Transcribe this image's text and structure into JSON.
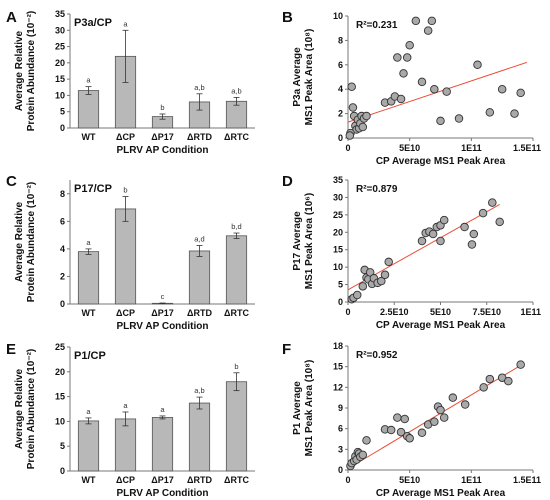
{
  "chart_data": [
    {
      "panel": "A",
      "type": "bar",
      "title": "P3a/CP",
      "xlabel": "PLRV AP Condition",
      "ylabel_lines": [
        "Average Relative",
        "Protein Abundance (10⁻²)"
      ],
      "categories": [
        "WT",
        "ΔCP",
        "ΔP17",
        "ΔRTD",
        "ΔRTC"
      ],
      "values": [
        11.5,
        22,
        3.5,
        8,
        8.2
      ],
      "errors": [
        1.2,
        8,
        0.8,
        2.5,
        1.2
      ],
      "sig_labels": [
        "a",
        "a",
        "b",
        "a,b",
        "a,b"
      ],
      "ylim": [
        0,
        35
      ],
      "yticks": [
        0,
        5,
        10,
        15,
        20,
        25,
        30,
        35
      ],
      "bar_color": "#b8b8b8"
    },
    {
      "panel": "B",
      "type": "scatter",
      "annotation": "R²=0.231",
      "xlabel": "CP Average MS1 Peak Area",
      "ylabel_lines": [
        "P3a Average",
        "MS1 Peak Area (10⁸)"
      ],
      "xlim": [
        0,
        150000000000
      ],
      "ylim": [
        0,
        10
      ],
      "xticks": [
        0,
        50000000000,
        100000000000,
        150000000000
      ],
      "xtick_labels": [
        "0",
        "5E10",
        "1E11",
        "1.5E11"
      ],
      "yticks": [
        0,
        2,
        4,
        6,
        8,
        10
      ],
      "trend": [
        [
          0,
          1.3
        ],
        [
          145000000000,
          6.2
        ]
      ],
      "points": [
        [
          3000000000.0,
          4.2
        ],
        [
          4000000000.0,
          2.5
        ],
        [
          5000000000.0,
          1.8
        ],
        [
          6000000000.0,
          1.0
        ],
        [
          7000000000.0,
          0.7
        ],
        [
          8000000000.0,
          1.5
        ],
        [
          9000000000.0,
          0.8
        ],
        [
          10000000000.0,
          1.2
        ],
        [
          11000000000.0,
          1.8
        ],
        [
          12000000000.0,
          0.9
        ],
        [
          13000000000.0,
          1.6
        ],
        [
          15000000000.0,
          1.8
        ],
        [
          2000000000.0,
          0.4
        ],
        [
          1500000000.0,
          0.2
        ],
        [
          30000000000.0,
          2.9
        ],
        [
          35000000000.0,
          3.0
        ],
        [
          38000000000.0,
          3.4
        ],
        [
          40000000000.0,
          6.6
        ],
        [
          43000000000.0,
          3.2
        ],
        [
          45000000000.0,
          5.3
        ],
        [
          48000000000.0,
          6.6
        ],
        [
          50000000000.0,
          7.6
        ],
        [
          55000000000.0,
          9.6
        ],
        [
          60000000000.0,
          4.6
        ],
        [
          65000000000.0,
          8.8
        ],
        [
          68000000000.0,
          9.6
        ],
        [
          70000000000.0,
          4.0
        ],
        [
          75000000000.0,
          1.4
        ],
        [
          80000000000.0,
          3.8
        ],
        [
          90000000000.0,
          1.6
        ],
        [
          105000000000.0,
          6.0
        ],
        [
          115000000000.0,
          2.1
        ],
        [
          125000000000.0,
          4.0
        ],
        [
          135000000000.0,
          2.0
        ],
        [
          140000000000.0,
          3.7
        ]
      ]
    },
    {
      "panel": "C",
      "type": "bar",
      "title": "P17/CP",
      "xlabel": "PLRV AP Condition",
      "ylabel_lines": [
        "Average Relative",
        "Protein Abundance (10⁻²)"
      ],
      "categories": [
        "WT",
        "ΔCP",
        "ΔP17",
        "ΔRTD",
        "ΔRTC"
      ],
      "values": [
        3.8,
        6.9,
        0.05,
        3.85,
        4.95
      ],
      "errors": [
        0.2,
        0.9,
        0.02,
        0.4,
        0.2
      ],
      "sig_labels": [
        "a",
        "b",
        "c",
        "a,d",
        "b,d"
      ],
      "ylim": [
        0,
        9
      ],
      "yticks": [
        0,
        2,
        4,
        6,
        8
      ],
      "bar_color": "#b8b8b8"
    },
    {
      "panel": "D",
      "type": "scatter",
      "annotation": "R²=0.879",
      "xlabel": "CP Average MS1 Peak Area",
      "ylabel_lines": [
        "P17 Average",
        "MS1 Peak Area (10⁶)"
      ],
      "xlim": [
        0,
        100000000000
      ],
      "ylim": [
        0,
        35
      ],
      "xticks": [
        0,
        25000000000,
        50000000000,
        75000000000,
        100000000000
      ],
      "xtick_labels": [
        "0",
        "2.5E10",
        "5E10",
        "7.5E10",
        "1E11"
      ],
      "yticks": [
        0,
        5,
        10,
        15,
        20,
        25,
        30,
        35
      ],
      "trend": [
        [
          0,
          3.5
        ],
        [
          82000000000,
          28
        ]
      ],
      "points": [
        [
          2000000000.0,
          0.8
        ],
        [
          3000000000.0,
          1.2
        ],
        [
          5000000000.0,
          2.0
        ],
        [
          8000000000.0,
          4.5
        ],
        [
          9000000000.0,
          9.2
        ],
        [
          10000000000.0,
          7.0
        ],
        [
          11000000000.0,
          6.5
        ],
        [
          12000000000.0,
          8.5
        ],
        [
          13000000000.0,
          5.2
        ],
        [
          14000000000.0,
          6.8
        ],
        [
          16000000000.0,
          5.5
        ],
        [
          18000000000.0,
          6.0
        ],
        [
          20000000000.0,
          7.8
        ],
        [
          22000000000.0,
          11.5
        ],
        [
          40000000000.0,
          17.5
        ],
        [
          42000000000.0,
          19.8
        ],
        [
          44000000000.0,
          20.2
        ],
        [
          46000000000.0,
          19.5
        ],
        [
          48000000000.0,
          21.5
        ],
        [
          50000000000.0,
          22.0
        ],
        [
          50000000000.0,
          17.5
        ],
        [
          52000000000.0,
          23.5
        ],
        [
          63000000000.0,
          21.5
        ],
        [
          67000000000.0,
          16.5
        ],
        [
          73000000000.0,
          25.5
        ],
        [
          78000000000.0,
          28.5
        ],
        [
          82000000000.0,
          23.0
        ],
        [
          68000000000.0,
          19.5
        ]
      ]
    },
    {
      "panel": "E",
      "type": "bar",
      "title": "P1/CP",
      "xlabel": "PLRV AP Condition",
      "ylabel_lines": [
        "Average Relative",
        "Protein Abundance (10⁻²)"
      ],
      "categories": [
        "WT",
        "ΔCP",
        "ΔP17",
        "ΔRTD",
        "ΔRTC"
      ],
      "values": [
        10.1,
        10.5,
        10.8,
        13.7,
        18
      ],
      "errors": [
        0.6,
        1.4,
        0.3,
        1.2,
        1.8
      ],
      "sig_labels": [
        "a",
        "a",
        "a",
        "a,b",
        "b"
      ],
      "ylim": [
        0,
        25
      ],
      "yticks": [
        0,
        5,
        10,
        15,
        20,
        25
      ],
      "bar_color": "#b8b8b8"
    },
    {
      "panel": "F",
      "type": "scatter",
      "annotation": "R²=0.952",
      "xlabel": "CP Average MS1 Peak Area",
      "ylabel_lines": [
        "P1 Average",
        "MS1 Peak Area (10⁸)"
      ],
      "xlim": [
        0,
        150000000000
      ],
      "ylim": [
        0,
        18
      ],
      "xticks": [
        0,
        50000000000,
        100000000000,
        150000000000
      ],
      "xtick_labels": [
        "0",
        "5E10",
        "1E11",
        "1.5E11"
      ],
      "yticks": [
        0,
        3,
        6,
        9,
        12,
        15,
        18
      ],
      "trend": [
        [
          0,
          0.2
        ],
        [
          142000000000,
          15.4
        ]
      ],
      "points": [
        [
          2000000000.0,
          0.6
        ],
        [
          3000000000.0,
          1.0
        ],
        [
          5000000000.0,
          1.3
        ],
        [
          6000000000.0,
          2.0
        ],
        [
          7000000000.0,
          1.5
        ],
        [
          8000000000.0,
          2.6
        ],
        [
          9000000000.0,
          2.4
        ],
        [
          10000000000.0,
          1.9
        ],
        [
          12000000000.0,
          2.2
        ],
        [
          15000000000.0,
          4.3
        ],
        [
          30000000000.0,
          5.9
        ],
        [
          35000000000.0,
          5.8
        ],
        [
          40000000000.0,
          7.6
        ],
        [
          43000000000.0,
          5.5
        ],
        [
          46000000000.0,
          7.4
        ],
        [
          48000000000.0,
          4.9
        ],
        [
          50000000000.0,
          4.6
        ],
        [
          60000000000.0,
          5.4
        ],
        [
          65000000000.0,
          6.6
        ],
        [
          70000000000.0,
          7.0
        ],
        [
          73000000000.0,
          9.2
        ],
        [
          75000000000.0,
          8.7
        ],
        [
          78000000000.0,
          7.6
        ],
        [
          85000000000.0,
          10.5
        ],
        [
          95000000000.0,
          9.5
        ],
        [
          110000000000.0,
          12.0
        ],
        [
          115000000000.0,
          13.2
        ],
        [
          125000000000.0,
          13.4
        ],
        [
          130000000000.0,
          12.9
        ],
        [
          140000000000.0,
          15.3
        ]
      ]
    }
  ]
}
